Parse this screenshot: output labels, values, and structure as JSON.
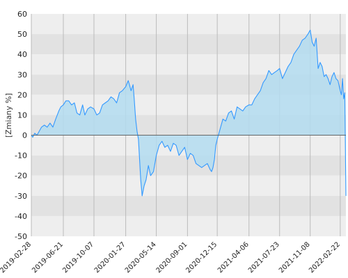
{
  "chart_data": {
    "type": "area",
    "title": "",
    "xlabel": "",
    "ylabel": "[Zmiany %]",
    "ylim": [
      -50,
      60
    ],
    "yticks": [
      60,
      50,
      40,
      30,
      20,
      10,
      0,
      -10,
      -20,
      -30,
      -40,
      -50
    ],
    "xticks": [
      "2019-02-28",
      "2019-06-21",
      "2019-10-07",
      "2020-01-27",
      "2020-05-14",
      "2020-09-01",
      "2020-12-15",
      "2021-04-06",
      "2021-07-23",
      "2021-11-08",
      "2022-02-22"
    ],
    "xlim": [
      "2019-02-28",
      "2022-03-14"
    ],
    "grid": true,
    "legend": "none",
    "colors": {
      "line": "#3399ff",
      "fill": "#b3dcf0",
      "band_dark": "#e2e2e2",
      "band_light": "#eeeeee",
      "grid": "#bbbbbb",
      "zero_line": "#555555"
    },
    "series": [
      {
        "x": [
          "2019-02-28",
          "2019-03-05",
          "2019-03-12",
          "2019-03-20",
          "2019-03-28",
          "2019-04-05",
          "2019-04-15",
          "2019-04-25",
          "2019-05-05",
          "2019-05-15",
          "2019-05-25",
          "2019-06-05",
          "2019-06-12",
          "2019-06-21",
          "2019-06-30",
          "2019-07-10",
          "2019-07-20",
          "2019-07-30",
          "2019-08-08",
          "2019-08-18",
          "2019-08-28",
          "2019-09-05",
          "2019-09-15",
          "2019-09-25",
          "2019-10-07",
          "2019-10-17",
          "2019-10-27",
          "2019-11-06",
          "2019-11-16",
          "2019-11-26",
          "2019-12-06",
          "2019-12-16",
          "2019-12-26",
          "2020-01-05",
          "2020-01-15",
          "2020-01-27",
          "2020-02-05",
          "2020-02-15",
          "2020-02-22",
          "2020-02-26",
          "2020-03-02",
          "2020-03-07",
          "2020-03-12",
          "2020-03-16",
          "2020-03-20",
          "2020-03-25",
          "2020-04-01",
          "2020-04-08",
          "2020-04-16",
          "2020-04-24",
          "2020-05-04",
          "2020-05-14",
          "2020-05-24",
          "2020-06-03",
          "2020-06-13",
          "2020-06-23",
          "2020-07-03",
          "2020-07-13",
          "2020-07-23",
          "2020-08-02",
          "2020-08-12",
          "2020-08-22",
          "2020-09-01",
          "2020-09-11",
          "2020-09-21",
          "2020-10-01",
          "2020-10-11",
          "2020-10-21",
          "2020-10-31",
          "2020-11-10",
          "2020-11-20",
          "2020-11-25",
          "2020-11-30",
          "2020-12-05",
          "2020-12-10",
          "2020-12-15",
          "2020-12-25",
          "2021-01-04",
          "2021-01-14",
          "2021-01-24",
          "2021-02-03",
          "2021-02-13",
          "2021-02-23",
          "2021-03-05",
          "2021-03-15",
          "2021-03-25",
          "2021-04-06",
          "2021-04-16",
          "2021-04-26",
          "2021-05-06",
          "2021-05-16",
          "2021-05-26",
          "2021-06-05",
          "2021-06-15",
          "2021-06-25",
          "2021-07-05",
          "2021-07-15",
          "2021-07-23",
          "2021-08-02",
          "2021-08-12",
          "2021-08-22",
          "2021-09-01",
          "2021-09-11",
          "2021-09-21",
          "2021-10-01",
          "2021-10-11",
          "2021-10-21",
          "2021-10-31",
          "2021-11-08",
          "2021-11-15",
          "2021-11-22",
          "2021-11-29",
          "2021-12-06",
          "2021-12-13",
          "2021-12-20",
          "2021-12-27",
          "2022-01-03",
          "2022-01-10",
          "2022-01-17",
          "2022-01-24",
          "2022-01-31",
          "2022-02-07",
          "2022-02-14",
          "2022-02-22",
          "2022-02-26",
          "2022-03-02",
          "2022-03-06",
          "2022-03-10",
          "2022-03-14"
        ],
        "y": [
          0,
          -1,
          1,
          0,
          2,
          4,
          5,
          4,
          6,
          4,
          8,
          12,
          14,
          15,
          17,
          17,
          15,
          16,
          11,
          10,
          15,
          10,
          13,
          14,
          13,
          10,
          11,
          15,
          16,
          17,
          19,
          18,
          16,
          21,
          22,
          24,
          27,
          22,
          25,
          18,
          8,
          2,
          -2,
          -12,
          -22,
          -30,
          -25,
          -22,
          -15,
          -20,
          -18,
          -10,
          -5,
          -3,
          -6,
          -5,
          -8,
          -4,
          -5,
          -10,
          -8,
          -6,
          -12,
          -9,
          -10,
          -14,
          -15,
          -16,
          -15,
          -14,
          -17,
          -18,
          -16,
          -12,
          -5,
          -2,
          3,
          8,
          7,
          11,
          12,
          8,
          14,
          13,
          12,
          14,
          15,
          15,
          18,
          20,
          22,
          26,
          28,
          32,
          30,
          31,
          32,
          33,
          28,
          31,
          34,
          36,
          40,
          42,
          44,
          47,
          48,
          50,
          52,
          46,
          44,
          48,
          33,
          36,
          34,
          29,
          30,
          28,
          25,
          29,
          31,
          28,
          27,
          22,
          20,
          28,
          18,
          21,
          -30
        ]
      }
    ]
  }
}
